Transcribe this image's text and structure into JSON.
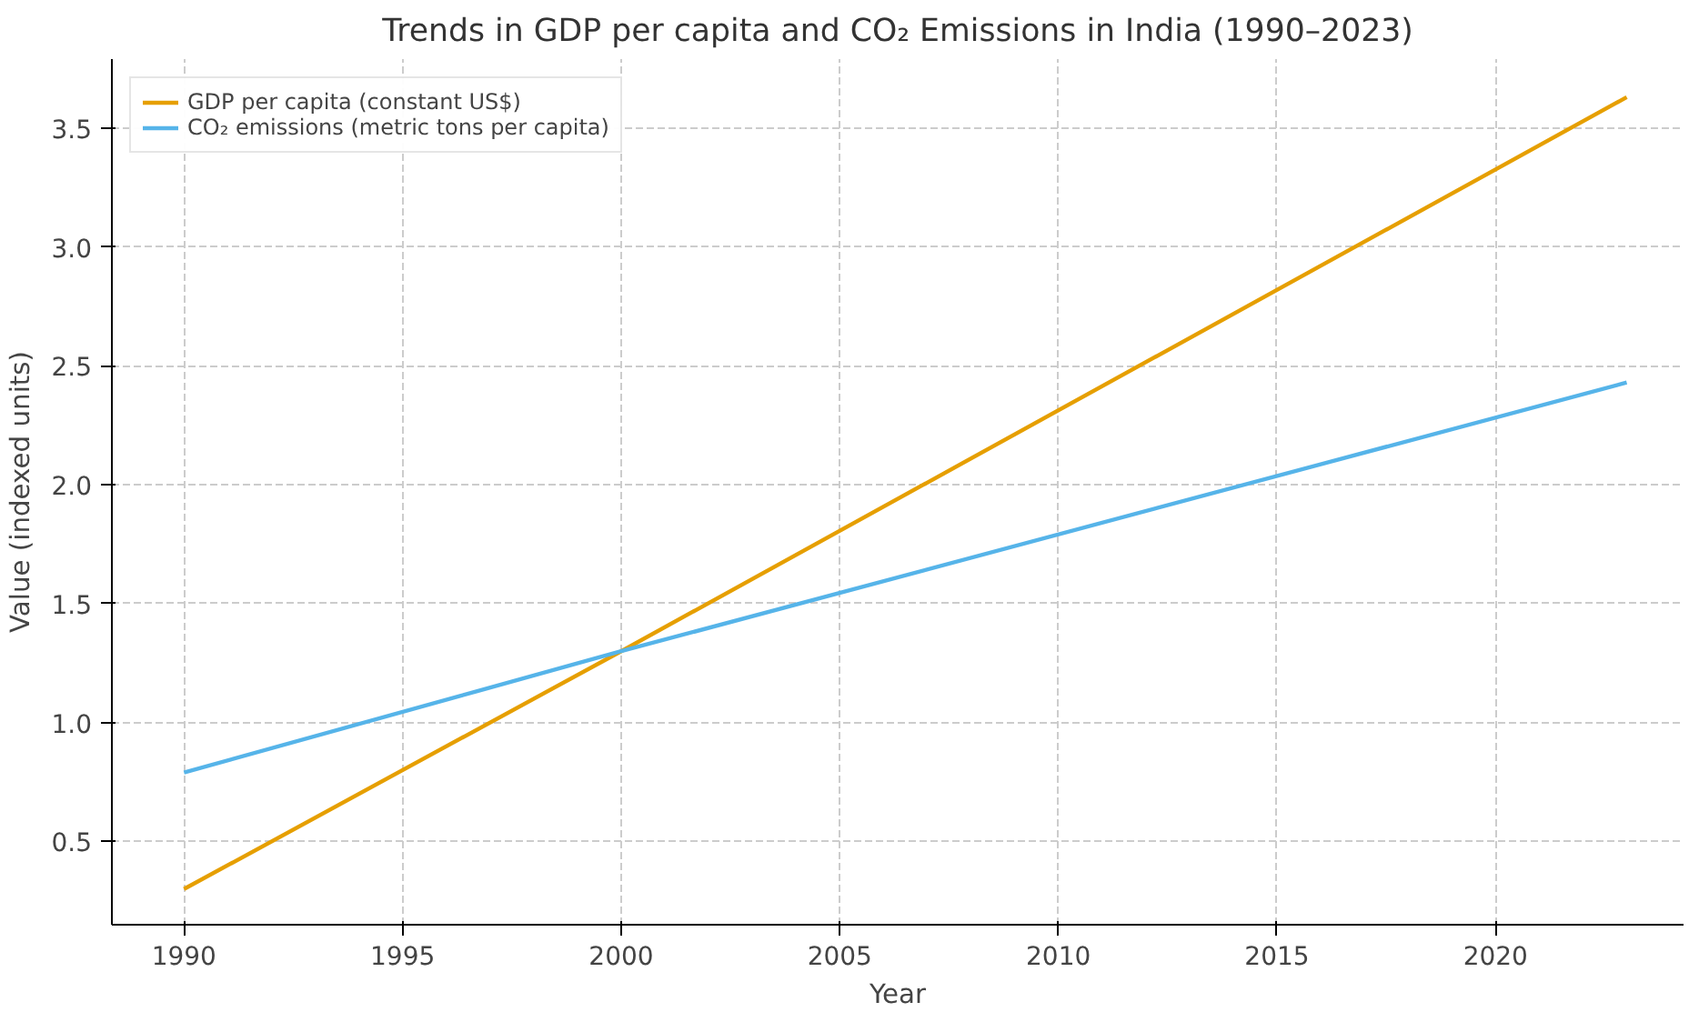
{
  "chart_data": {
    "type": "line",
    "title": "Trends in GDP per capita and CO₂ Emissions in India (1990–2023)",
    "xlabel": "Year",
    "ylabel": "Value (indexed units)",
    "x": [
      1990,
      2000,
      2023
    ],
    "series": [
      {
        "name": "GDP per capita (constant US$)",
        "color": "#e69f00",
        "values": [
          0.3,
          1.3,
          3.63
        ]
      },
      {
        "name": "CO₂ emissions (metric tons per capita)",
        "color": "#56b4e9",
        "values": [
          0.79,
          1.3,
          2.43
        ]
      }
    ],
    "xlim": [
      1988.35,
      2024.3
    ],
    "ylim": [
      0.15,
      3.79
    ],
    "xticks": [
      1990,
      1995,
      2000,
      2005,
      2010,
      2015,
      2020
    ],
    "yticks": [
      0.5,
      {
        "value": 1,
        "label": "1.0"
      },
      1.5,
      {
        "value": 2,
        "label": "2.0"
      },
      2.5,
      {
        "value": 3,
        "label": "3.0"
      },
      3.5
    ],
    "grid": true,
    "legend": "top left",
    "line_style": "solid",
    "marker": "none"
  }
}
